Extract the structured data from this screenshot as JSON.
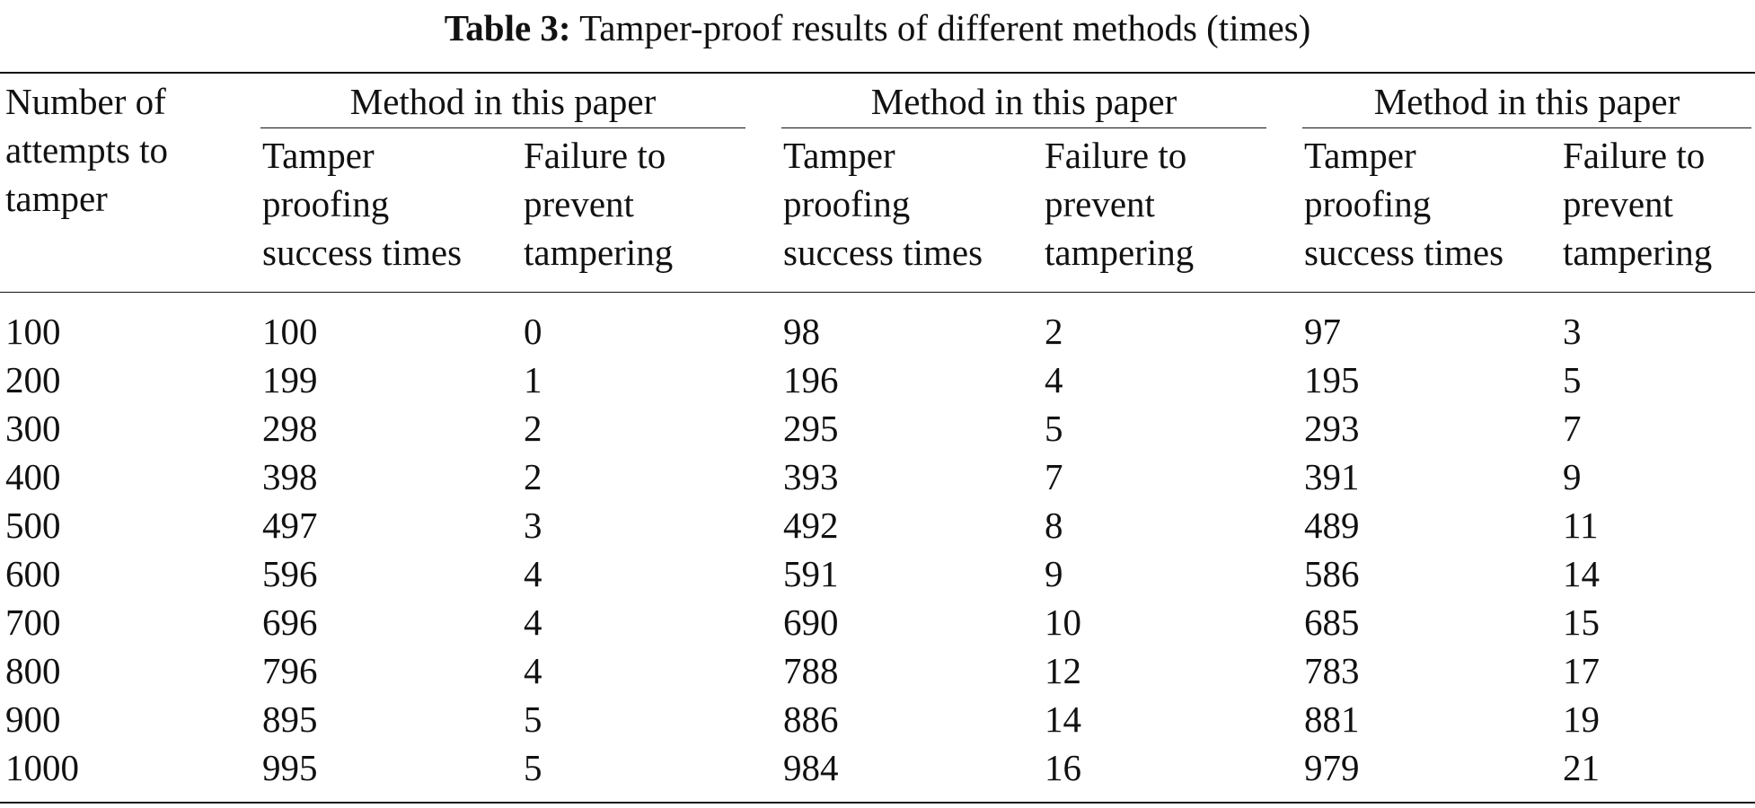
{
  "caption": {
    "label": "Table 3:",
    "text": "Tamper-proof results of different methods (times)"
  },
  "table": {
    "row_header": "Number of\nattempts to\ntamper",
    "groups": [
      {
        "title": "Method in this paper",
        "sub": [
          "Tamper\nproofing\nsuccess times",
          "Failure to\nprevent\ntampering"
        ]
      },
      {
        "title": "Method in this paper",
        "sub": [
          "Tamper\nproofing\nsuccess times",
          "Failure to\nprevent\ntampering"
        ]
      },
      {
        "title": "Method in this paper",
        "sub": [
          "Tamper\nproofing\nsuccess times",
          "Failure to\nprevent\ntampering"
        ]
      }
    ],
    "rows": [
      [
        "100",
        "100",
        "0",
        "98",
        "2",
        "97",
        "3"
      ],
      [
        "200",
        "199",
        "1",
        "196",
        "4",
        "195",
        "5"
      ],
      [
        "300",
        "298",
        "2",
        "295",
        "5",
        "293",
        "7"
      ],
      [
        "400",
        "398",
        "2",
        "393",
        "7",
        "391",
        "9"
      ],
      [
        "500",
        "497",
        "3",
        "492",
        "8",
        "489",
        "11"
      ],
      [
        "600",
        "596",
        "4",
        "591",
        "9",
        "586",
        "14"
      ],
      [
        "700",
        "696",
        "4",
        "690",
        "10",
        "685",
        "15"
      ],
      [
        "800",
        "796",
        "4",
        "788",
        "12",
        "783",
        "17"
      ],
      [
        "900",
        "895",
        "5",
        "886",
        "14",
        "881",
        "19"
      ],
      [
        "1000",
        "995",
        "5",
        "984",
        "16",
        "979",
        "21"
      ]
    ]
  }
}
